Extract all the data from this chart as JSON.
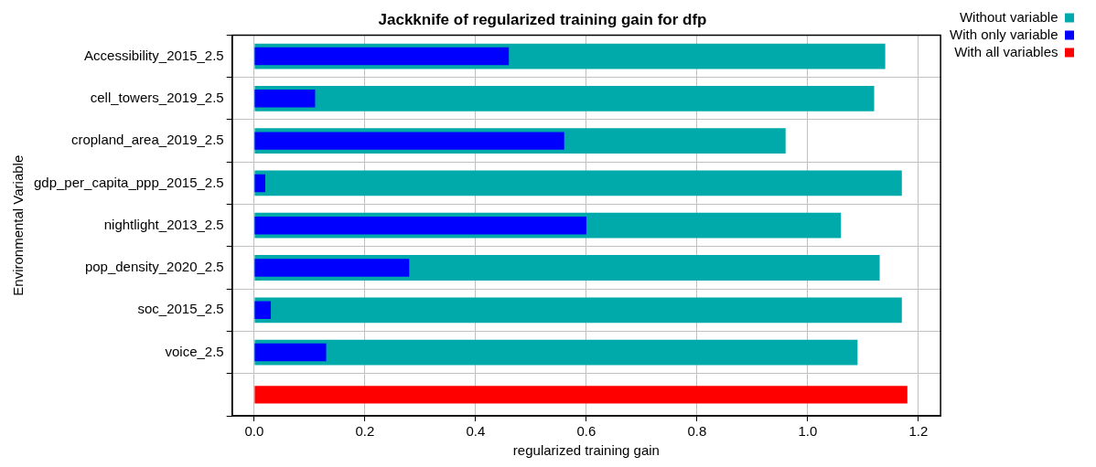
{
  "chart_data": {
    "type": "bar",
    "orientation": "horizontal",
    "title": "Jackknife of regularized training gain for dfp",
    "xlabel": "regularized training gain",
    "ylabel": "Environmental Variable",
    "categories": [
      "Accessibility_2015_2.5",
      "cell_towers_2019_2.5",
      "cropland_area_2019_2.5",
      "gdp_per_capita_ppp_2015_2.5",
      "nightlight_2013_2.5",
      "pop_density_2020_2.5",
      "soc_2015_2.5",
      "voice_2.5",
      null
    ],
    "series": [
      {
        "name": "Without variable",
        "color": "#00aaaa",
        "values": [
          1.14,
          1.12,
          0.96,
          1.17,
          1.06,
          1.13,
          1.17,
          1.09,
          null
        ]
      },
      {
        "name": "With only variable",
        "color": "#0000ff",
        "values": [
          0.46,
          0.11,
          0.56,
          0.02,
          0.6,
          0.28,
          0.03,
          0.13,
          null
        ]
      },
      {
        "name": "With all variables",
        "color": "#ff0000",
        "values": [
          null,
          null,
          null,
          null,
          null,
          null,
          null,
          null,
          1.18
        ]
      }
    ],
    "xlim": [
      -0.04,
      1.24
    ],
    "xticks": [
      {
        "value": 0,
        "label": "0.0"
      },
      0.2,
      0.4,
      0.6,
      0.8,
      {
        "value": 1,
        "label": "1.0"
      },
      1.2
    ],
    "grid": true,
    "legend": "top right"
  }
}
